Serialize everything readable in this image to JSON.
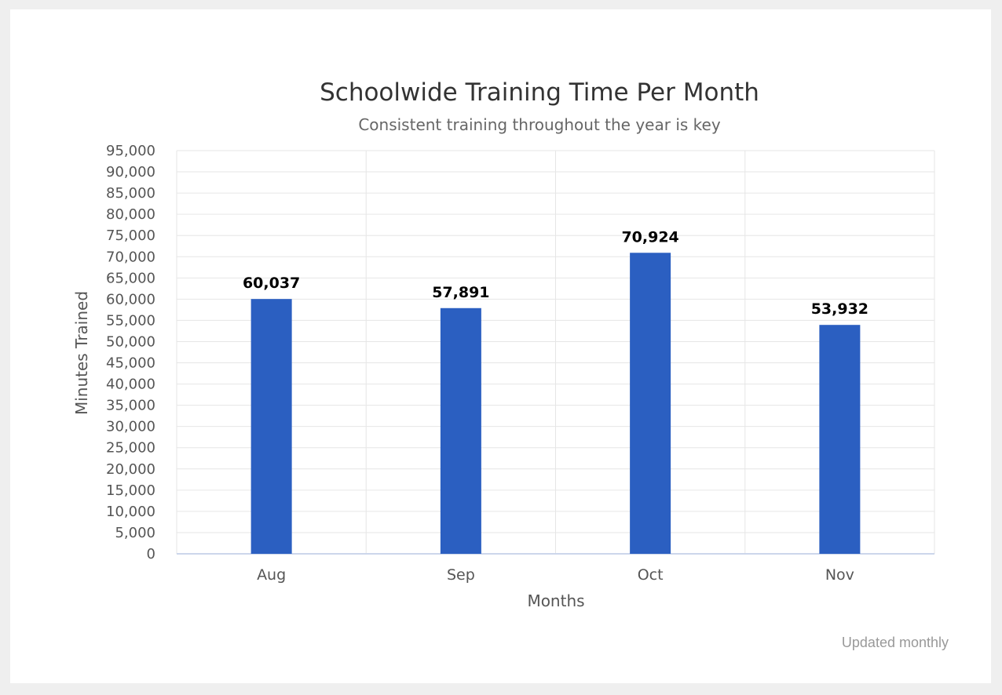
{
  "chart_data": {
    "type": "bar",
    "title": "Schoolwide Training Time Per Month",
    "subtitle": "Consistent training throughout the year is key",
    "xlabel": "Months",
    "ylabel": "Minutes Trained",
    "categories": [
      "Aug",
      "Sep",
      "Oct",
      "Nov"
    ],
    "values": [
      60037,
      57891,
      70924,
      53932
    ],
    "data_labels": [
      "60,037",
      "57,891",
      "70,924",
      "53,932"
    ],
    "ylim": [
      0,
      95000
    ],
    "ytick_step": 5000,
    "grid": true,
    "legend": "none",
    "bar_color": "#2b5fc1"
  },
  "credits": "Updated monthly"
}
